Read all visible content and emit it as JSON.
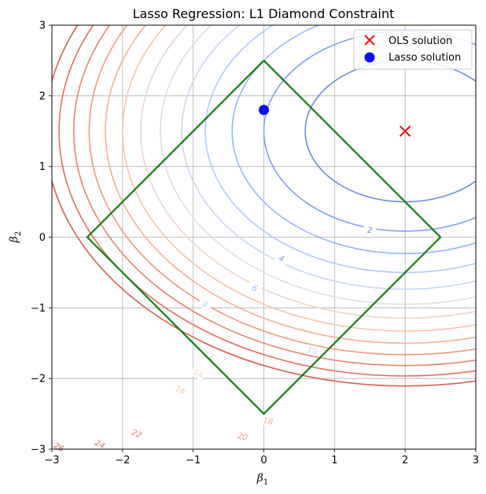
{
  "chart_data": {
    "type": "line",
    "title": "Lasso Regression: L1 Diamond Constraint",
    "xlabel": "β",
    "xlabel_sub": "1",
    "ylabel": "β",
    "ylabel_sub": "2",
    "xlim": [
      -3,
      3
    ],
    "ylim": [
      -3,
      3
    ],
    "grid": true,
    "xticks": [
      -3,
      -2,
      -1,
      0,
      1,
      2,
      3
    ],
    "yticks": [
      -3,
      -2,
      -1,
      0,
      1,
      2,
      3
    ],
    "xtick_labels": [
      "−3",
      "−2",
      "−1",
      "0",
      "1",
      "2",
      "3"
    ],
    "ytick_labels": [
      "−3",
      "−2",
      "−1",
      "0",
      "1",
      "2",
      "3"
    ],
    "ols_solution": {
      "name": "OLS solution",
      "x": 2,
      "y": 1.5,
      "color": "#ee1111",
      "marker": "x"
    },
    "lasso_solution": {
      "name": "Lasso solution",
      "x": 0,
      "y": 1.8,
      "color": "#0a10f5",
      "marker": "circle"
    },
    "constraint": {
      "name": "L1 diamond",
      "color": "#118011",
      "vertices": [
        [
          0,
          2.5
        ],
        [
          2.5,
          0
        ],
        [
          0,
          -2.5
        ],
        [
          -2.5,
          0
        ],
        [
          0,
          2.5
        ]
      ]
    },
    "contours": {
      "function": "(b1-2)^2 + 2*(b2-1.5)^2",
      "center": [
        2,
        1.5
      ],
      "a": 1,
      "b": 2,
      "levels": [
        {
          "level": 2,
          "label": "2",
          "color": "#6a8ae6",
          "label_at": [
            1.5,
            0.1
          ]
        },
        {
          "level": 4,
          "label": "4",
          "color": "#7f9ff2",
          "label_at": [
            0.25,
            -0.3
          ]
        },
        {
          "level": 6,
          "label": "6",
          "color": "#98b6fb",
          "label_at": [
            -0.13,
            -0.72
          ]
        },
        {
          "level": 8,
          "label": "8",
          "color": "#b0cafc",
          "label_at": [
            -0.83,
            -0.95
          ]
        },
        {
          "level": 10,
          "label": "10",
          "color": "#c8d7f0",
          "label_at": [
            0.69,
            -1.6
          ]
        },
        {
          "level": 12,
          "label": "12",
          "color": "#dcdfe6",
          "label_at": [
            -0.78,
            -1.67
          ]
        },
        {
          "level": 14,
          "label": "14",
          "color": "#edd5c6",
          "label_at": [
            -0.93,
            -1.93
          ]
        },
        {
          "level": 16,
          "label": "16",
          "color": "#f5c4ac",
          "label_at": [
            -1.18,
            -2.16
          ]
        },
        {
          "level": 18,
          "label": "18",
          "color": "#f6b096",
          "label_at": [
            0.06,
            -2.6
          ]
        },
        {
          "level": 20,
          "label": "20",
          "color": "#ef9a80",
          "label_at": [
            -0.3,
            -2.82
          ]
        },
        {
          "level": 22,
          "label": "22",
          "color": "#e6826d",
          "label_at": [
            -1.8,
            -2.78
          ]
        },
        {
          "level": 24,
          "label": "24",
          "color": "#e07060",
          "label_at": [
            -2.32,
            -2.93
          ]
        },
        {
          "level": 26,
          "label": "26",
          "color": "#d85c50",
          "label_at": [
            -2.9,
            -2.97
          ]
        }
      ]
    },
    "legend": {
      "position": "top-right",
      "entries": [
        {
          "label": "OLS solution",
          "color": "#ee1111",
          "marker": "x"
        },
        {
          "label": "Lasso solution",
          "color": "#0a10f5",
          "marker": "circle"
        }
      ]
    }
  }
}
